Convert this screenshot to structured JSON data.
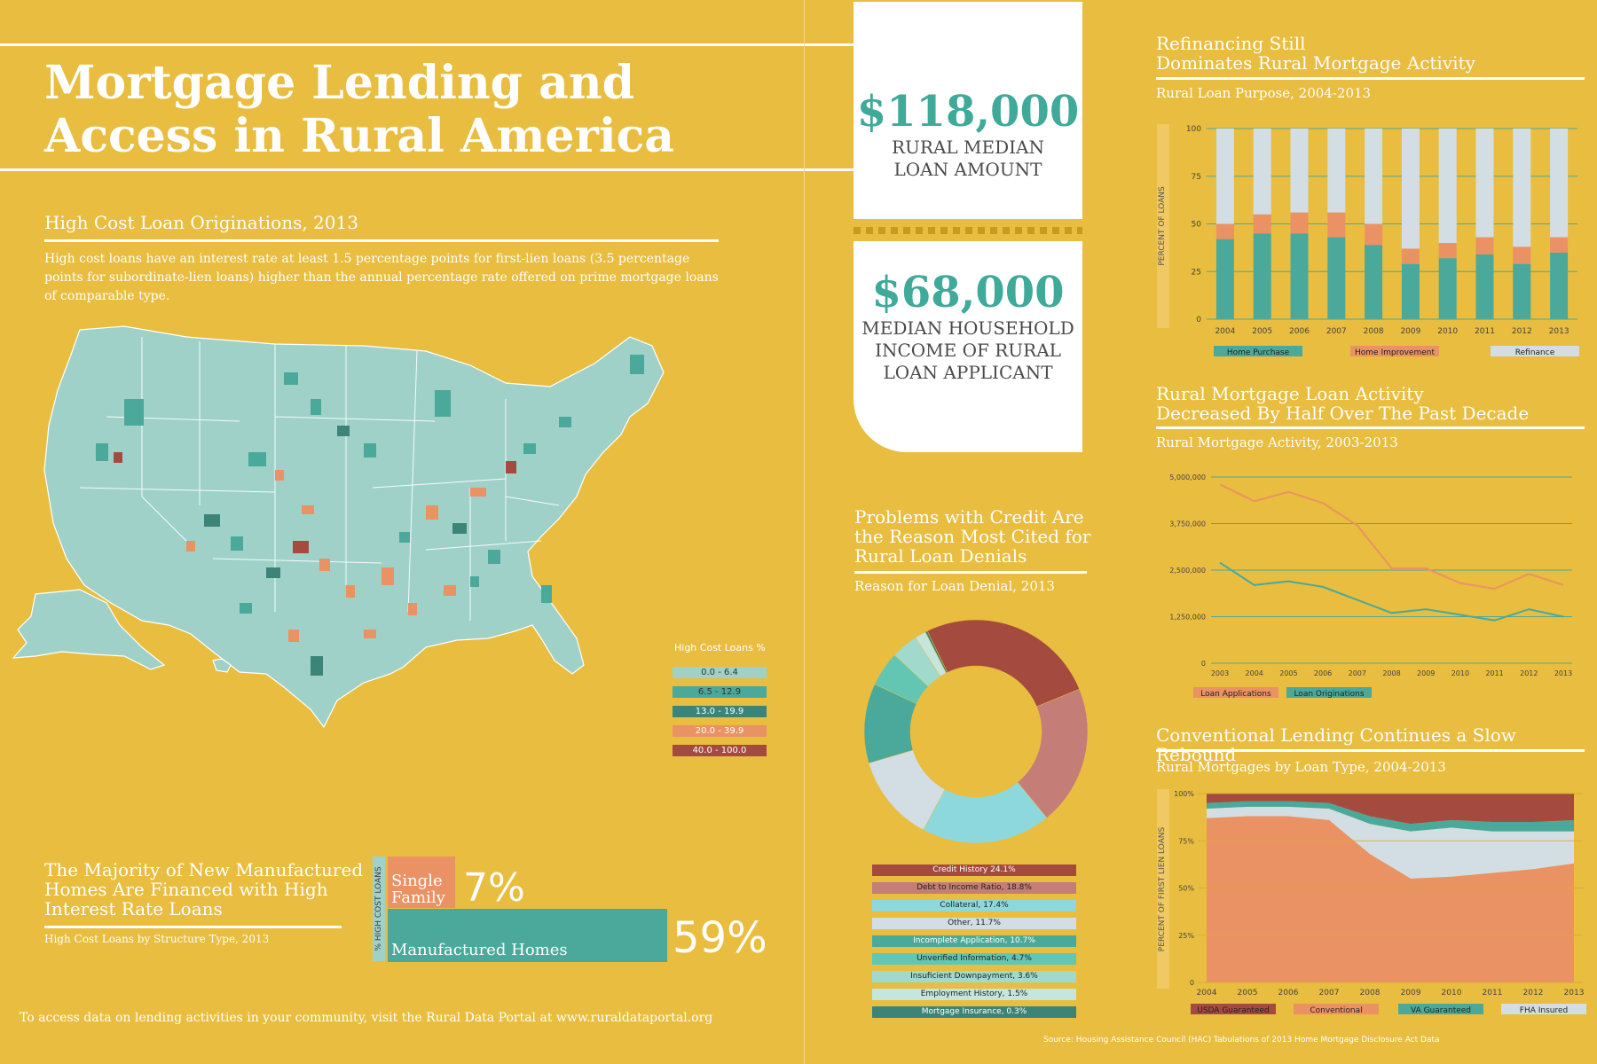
{
  "title_line1": "Mortgage Lending and",
  "title_line2": "Access in Rural America",
  "map_section": {
    "heading": "High Cost Loan Originations, 2013",
    "description": "High cost loans have an interest rate at least 1.5 percentage points for first-lien loans (3.5 percentage points for subordinate-lien loans) higher than the annual percentage rate offered on prime mortgage loans of comparable type.",
    "legend_title": "High Cost Loans %",
    "legend": [
      {
        "label": "0.0 - 6.4",
        "color": "#9fd1c8"
      },
      {
        "label": "6.5 - 12.9",
        "color": "#4aa99b"
      },
      {
        "label": "13.0 - 19.9",
        "color": "#3d8478"
      },
      {
        "label": "20.0 - 39.9",
        "color": "#ea9264"
      },
      {
        "label": "40.0 - 100.0",
        "color": "#a44a3f"
      }
    ]
  },
  "stats": {
    "loan_amount": "$118,000",
    "loan_caption1": "RURAL MEDIAN",
    "loan_caption2": "LOAN AMOUNT",
    "income_amount": "$68,000",
    "income_caption1": "MEDIAN HOUSEHOLD",
    "income_caption2": "INCOME OF RURAL",
    "income_caption3": "LOAN APPLICANT"
  },
  "manufactured": {
    "heading1": "The Majority of New Manufactured",
    "heading2": "Homes Are Financed with High",
    "heading3": "Interest Rate Loans",
    "subtitle": "High Cost Loans by Structure Type, 2013",
    "axis_label": "% HIGH COST LOANS",
    "single_line1": "Single",
    "single_line2": "Family",
    "single_value": "7%",
    "manufactured_label": "Manufactured Homes",
    "manufactured_value": "59%"
  },
  "footer_text": "To access data on lending activities in your community, visit the Rural Data Portal at www.ruraldataportal.org",
  "source_text": "Source: Housing Assistance Council (HAC) Tabulations of 2013 Home Mortgage Disclosure Act Data",
  "refi_section": {
    "heading1": "Refinancing Still",
    "heading2": "Dominates Rural Mortgage Activity",
    "subtitle": "Rural Loan Purpose, 2004-2013"
  },
  "activity_section": {
    "heading1": "Rural Mortgage Loan Activity",
    "heading2": "Decreased By Half Over The Past Decade",
    "subtitle": "Rural Mortgage Activity, 2003-2013"
  },
  "denial_section": {
    "heading1": "Problems with Credit Are",
    "heading2": "the Reason Most Cited for",
    "heading3": "Rural Loan Denials",
    "subtitle": "Reason for Loan Denial, 2013"
  },
  "type_section": {
    "heading": "Conventional Lending Continues a Slow Rebound",
    "subtitle": "Rural Mortgages by Loan Type, 2004-2013"
  },
  "chart_data": [
    {
      "id": "structure",
      "type": "bar",
      "categories": [
        "Single Family",
        "Manufactured Homes"
      ],
      "values": [
        7,
        59
      ],
      "ylabel": "% HIGH COST LOANS",
      "colors": [
        "#ea9264",
        "#4aa99b"
      ]
    },
    {
      "id": "purpose",
      "type": "bar",
      "stacked": true,
      "title": "Rural Loan Purpose, 2004-2013",
      "ylabel": "PERCENT OF LOANS",
      "categories": [
        "2004",
        "2005",
        "2006",
        "2007",
        "2008",
        "2009",
        "2010",
        "2011",
        "2012",
        "2013"
      ],
      "yticks": [
        "0",
        "25",
        "50",
        "75",
        "100"
      ],
      "ylim": [
        0,
        100
      ],
      "series": [
        {
          "name": "Home Purchase",
          "color": "#4aa99b",
          "values": [
            42,
            45,
            45,
            43,
            39,
            29,
            32,
            34,
            29,
            35
          ]
        },
        {
          "name": "Home Improvement",
          "color": "#ea9264",
          "values": [
            8,
            10,
            11,
            13,
            11,
            8,
            8,
            9,
            9,
            8
          ]
        },
        {
          "name": "Refinance",
          "color": "#d2dee3",
          "values": [
            50,
            45,
            44,
            44,
            50,
            63,
            60,
            57,
            62,
            57
          ]
        }
      ]
    },
    {
      "id": "activity",
      "type": "line",
      "title": "Rural Mortgage Activity, 2003-2013",
      "categories": [
        "2003",
        "2004",
        "2005",
        "2006",
        "2007",
        "2008",
        "2009",
        "2010",
        "2011",
        "2012",
        "2013"
      ],
      "yticks": [
        "0",
        "1,250,000",
        "2,500,000",
        "3,750,000",
        "5,000,000"
      ],
      "ylim": [
        0,
        5000000
      ],
      "grid": true,
      "series": [
        {
          "name": "Loan Applications",
          "color": "#ea9264",
          "values": [
            4800000,
            4350000,
            4600000,
            4300000,
            3700000,
            2550000,
            2550000,
            2150000,
            2000000,
            2400000,
            2100000
          ]
        },
        {
          "name": "Loan Originations",
          "color": "#4aa99b",
          "values": [
            2700000,
            2100000,
            2200000,
            2050000,
            1700000,
            1350000,
            1450000,
            1300000,
            1150000,
            1450000,
            1250000
          ]
        }
      ]
    },
    {
      "id": "denial",
      "type": "pie",
      "donut": true,
      "title": "Reason for Loan Denial, 2013",
      "slices": [
        {
          "label": "Credit History 24.1%",
          "value": 24.1,
          "color": "#a44a3f"
        },
        {
          "label": "Debt to Income Ratio, 18.8%",
          "value": 18.8,
          "color": "#c57d78"
        },
        {
          "label": "Collateral, 17.4%",
          "value": 17.4,
          "color": "#8dd8dc"
        },
        {
          "label": "Other, 11.7%",
          "value": 11.7,
          "color": "#d2dee3"
        },
        {
          "label": "Incomplete Application, 10.7%",
          "value": 10.7,
          "color": "#4aa99b"
        },
        {
          "label": "Unverified Information, 4.7%",
          "value": 4.7,
          "color": "#63c6b2"
        },
        {
          "label": "Insuficient Downpayment, 3.6%",
          "value": 3.6,
          "color": "#a2d9cd"
        },
        {
          "label": "Employment History, 1.5%",
          "value": 1.5,
          "color": "#c4e6dd"
        },
        {
          "label": "Mortgage Insurance, 0.3%",
          "value": 0.3,
          "color": "#3d8478"
        }
      ]
    },
    {
      "id": "loantype",
      "type": "area",
      "stacked": true,
      "title": "Rural Mortgages by Loan Type, 2004-2013",
      "ylabel": "PERCENT OF FIRST LIEN LOANS",
      "categories": [
        "2004",
        "2005",
        "2006",
        "2007",
        "2008",
        "2009",
        "2010",
        "2011",
        "2012",
        "2013"
      ],
      "yticks": [
        "0",
        "25%",
        "50%",
        "75%",
        "100%"
      ],
      "ylim": [
        0,
        100
      ],
      "series": [
        {
          "name": "Conventional",
          "color": "#ea9264",
          "values": [
            87,
            88,
            88,
            86,
            68,
            55,
            56,
            58,
            60,
            63
          ]
        },
        {
          "name": "FHA Insured",
          "color": "#d2dee3",
          "values": [
            5,
            5,
            5,
            6,
            16,
            25,
            26,
            22,
            20,
            17
          ]
        },
        {
          "name": "VA Guaranteed",
          "color": "#4aa99b",
          "values": [
            3,
            3,
            3,
            3,
            4,
            4,
            4,
            5,
            5,
            6
          ]
        },
        {
          "name": "USDA Guaranteed",
          "color": "#a44a3f",
          "values": [
            5,
            4,
            4,
            5,
            12,
            16,
            14,
            15,
            15,
            14
          ]
        }
      ]
    }
  ]
}
